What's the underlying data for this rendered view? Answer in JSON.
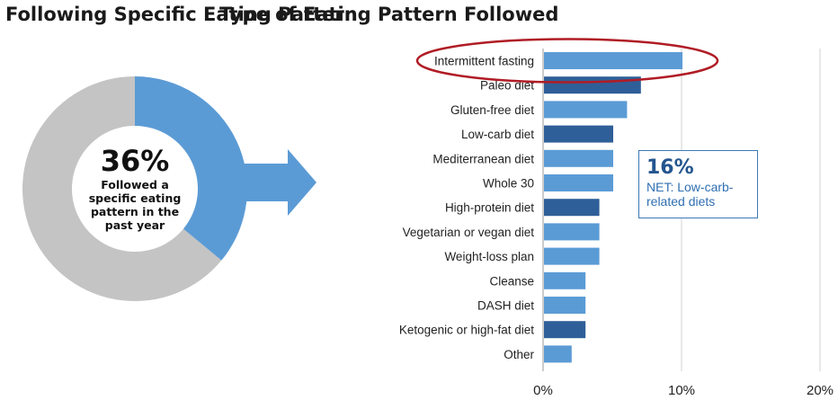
{
  "left_title": "Following Specific Eating Pattern",
  "donut": {
    "value_label": "36%",
    "value": 36,
    "description": "Followed a specific eating pattern in the past year",
    "colors": {
      "highlight": "#5b9bd5",
      "rest": "#c4c4c4",
      "arrow": "#5b9bd5"
    }
  },
  "chart_data": {
    "type": "bar",
    "orientation": "horizontal",
    "title": "Type of Eating Pattern Followed",
    "categories": [
      "Intermittent fasting",
      "Paleo diet",
      "Gluten-free diet",
      "Low-carb diet",
      "Mediterranean diet",
      "Whole 30",
      "High-protein diet",
      "Vegetarian or vegan diet",
      "Weight-loss plan",
      "Cleanse",
      "DASH diet",
      "Ketogenic or high-fat diet",
      "Other"
    ],
    "values": [
      10,
      7,
      6,
      5,
      5,
      5,
      4,
      4,
      4,
      3,
      3,
      3,
      2
    ],
    "low_carb_related": [
      false,
      true,
      false,
      true,
      false,
      false,
      true,
      false,
      false,
      false,
      false,
      true,
      false
    ],
    "colors": {
      "default": "#5b9bd5",
      "low_carb": "#2f5f98",
      "highlight_ellipse": "#b01c25"
    },
    "xlim": [
      0,
      20
    ],
    "xticks": [
      0,
      10,
      20
    ],
    "xtick_labels": [
      "0%",
      "10%",
      "20%"
    ],
    "highlighted_category": "Intermittent fasting",
    "annotation": {
      "value_label": "16%",
      "text": "NET: Low-carb-related diets"
    }
  }
}
